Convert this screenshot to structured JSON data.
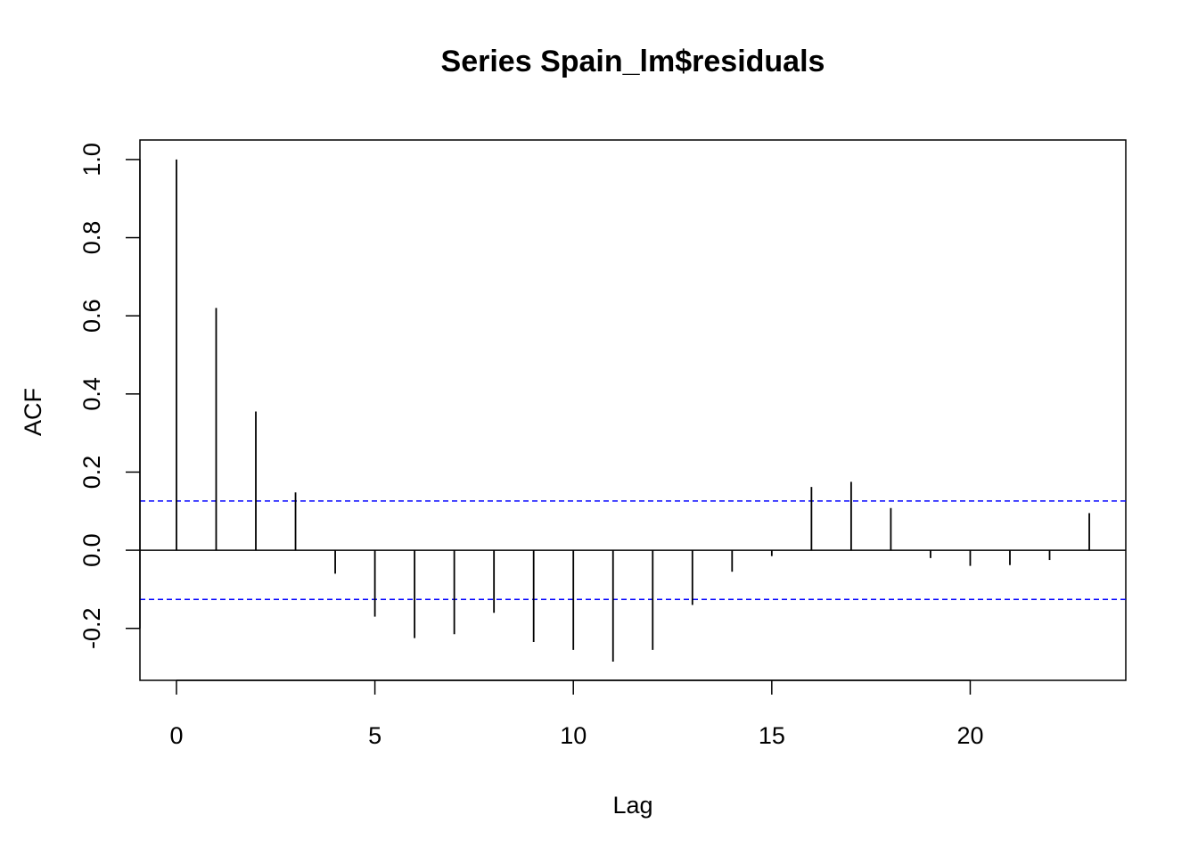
{
  "chart_data": {
    "type": "bar",
    "title": "Series  Spain_lm$residuals",
    "xlabel": "Lag",
    "ylabel": "ACF",
    "x": [
      0,
      1,
      2,
      3,
      4,
      5,
      6,
      7,
      8,
      9,
      10,
      11,
      12,
      13,
      14,
      15,
      16,
      17,
      18,
      19,
      20,
      21,
      22,
      23
    ],
    "values": [
      1.0,
      0.62,
      0.355,
      0.148,
      -0.06,
      -0.17,
      -0.225,
      -0.215,
      -0.16,
      -0.235,
      -0.255,
      -0.285,
      -0.255,
      -0.14,
      -0.055,
      -0.015,
      0.162,
      0.175,
      0.108,
      -0.02,
      -0.04,
      -0.038,
      -0.025,
      0.095
    ],
    "confidence_bound": 0.126,
    "xlim": [
      -0.92,
      23.92
    ],
    "ylim": [
      -0.333,
      1.05
    ],
    "x_ticks": [
      0,
      5,
      10,
      15,
      20
    ],
    "y_ticks": [
      -0.2,
      0.0,
      0.2,
      0.4,
      0.6,
      0.8,
      1.0
    ],
    "x_tick_labels": [
      "0",
      "5",
      "10",
      "15",
      "20"
    ],
    "y_tick_labels": [
      "-0.2",
      "0.0",
      "0.2",
      "0.4",
      "0.6",
      "0.8",
      "1.0"
    ],
    "grid": false,
    "bar_color": "#000000",
    "ci_color": "#0000ff"
  }
}
